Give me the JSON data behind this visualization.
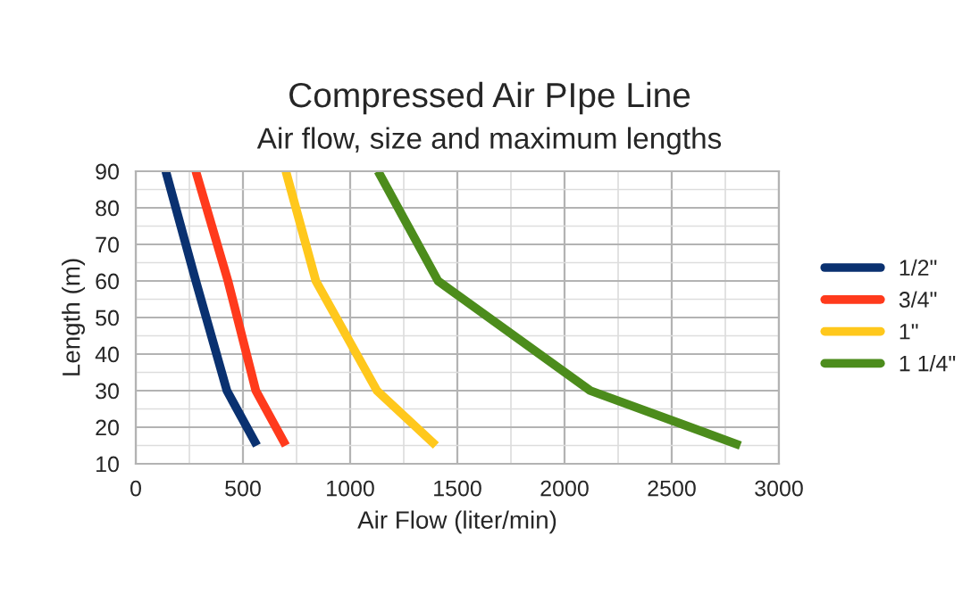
{
  "chart_data": {
    "type": "line",
    "title": "Compressed Air PIpe Line",
    "subtitle": "Air flow, size and maximum lengths",
    "xlabel": "Air Flow (liter/min)",
    "ylabel": "Length (m)",
    "series": [
      {
        "name": "1/2\"",
        "color": "#0a3170",
        "x": [
          140,
          280,
          425,
          565
        ],
        "values": [
          90,
          60,
          30,
          15
        ]
      },
      {
        "name": "3/4\"",
        "color": "#ff3a1c",
        "x": [
          280,
          430,
          560,
          700
        ],
        "values": [
          90,
          60,
          30,
          15
        ]
      },
      {
        "name": "1\"",
        "color": "#ffc81c",
        "x": [
          700,
          840,
          1125,
          1400
        ],
        "values": [
          90,
          60,
          30,
          15
        ]
      },
      {
        "name": "1 1/4\"",
        "color": "#4c8c1c",
        "x": [
          1130,
          1410,
          2120,
          2820
        ],
        "values": [
          90,
          60,
          30,
          15
        ]
      }
    ],
    "xlim": [
      0,
      3000
    ],
    "xticks": [
      0,
      500,
      1000,
      1500,
      2000,
      2500,
      3000
    ],
    "ylim": [
      10,
      90
    ],
    "yticks": [
      10,
      20,
      30,
      40,
      50,
      60,
      70,
      80,
      90
    ],
    "grid": true,
    "legend": "right",
    "marker": "none",
    "line_style": "solid"
  }
}
